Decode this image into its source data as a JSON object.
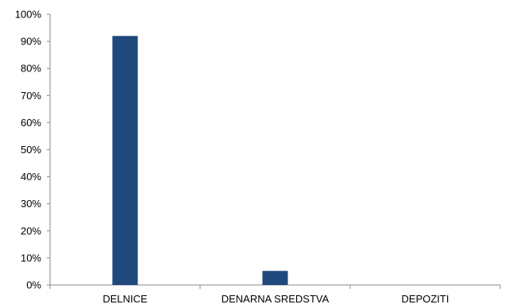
{
  "chart_data": {
    "type": "bar",
    "categories": [
      "DELNICE",
      "DENARNA SREDSTVA",
      "DEPOZITI"
    ],
    "values": [
      92,
      5.2,
      0
    ],
    "value_unit": "%",
    "title": "",
    "xlabel": "",
    "ylabel": "",
    "ylim": [
      0,
      100
    ],
    "y_ticks": [
      "0%",
      "10%",
      "20%",
      "30%",
      "40%",
      "50%",
      "60%",
      "70%",
      "80%",
      "90%",
      "100%"
    ],
    "grid": false,
    "legend": "none",
    "colors": {
      "bar": "#1f497d",
      "axis": "#888888",
      "text": "#000000"
    }
  }
}
